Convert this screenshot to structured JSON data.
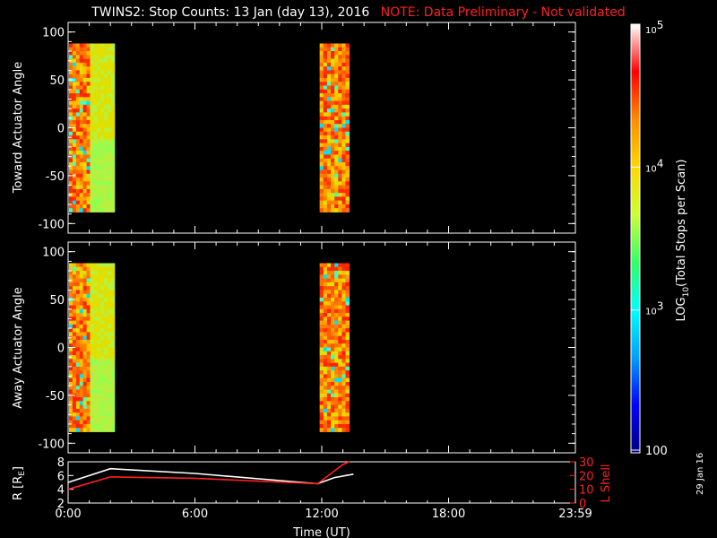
{
  "title": {
    "main": "TWINS2: Stop Counts: 13 Jan (day  13), 2016",
    "note": "NOTE: Data Preliminary - Not validated"
  },
  "side_date": "29 Jan 16",
  "colors": {
    "background": "#000000",
    "axes": "#ffffff",
    "note": "#ff2020",
    "lshell": "#ff2020"
  },
  "chart_data": [
    {
      "type": "heatmap",
      "panel": "toward",
      "ylabel": "Toward Actuator Angle",
      "ylim": [
        -110,
        110
      ],
      "yticks": [
        "100",
        "50",
        "0",
        "-50",
        "-100"
      ],
      "xlim_hours": [
        0,
        24
      ],
      "angle_range": [
        -88,
        88
      ],
      "blocks": [
        {
          "start_hour": -0.2,
          "end_hour": 2.2
        },
        {
          "start_hour": 11.9,
          "end_hour": 13.3
        }
      ]
    },
    {
      "type": "heatmap",
      "panel": "away",
      "ylabel": "Away Actuator Angle",
      "ylim": [
        -110,
        110
      ],
      "yticks": [
        "100",
        "50",
        "0",
        "-50",
        "-100"
      ],
      "xlim_hours": [
        0,
        24
      ],
      "angle_range": [
        -88,
        88
      ],
      "blocks": [
        {
          "start_hour": -0.2,
          "end_hour": 2.2
        },
        {
          "start_hour": 11.9,
          "end_hour": 13.3
        }
      ]
    },
    {
      "type": "line",
      "panel": "ephemeris",
      "ylabel": "R [R",
      "ylabel_sub": "E",
      "ylabel_end": "]",
      "ylim": [
        2,
        8
      ],
      "yticks": [
        "8",
        "6",
        "4",
        "2"
      ],
      "y2label": "L Shell",
      "y2lim": [
        0,
        30
      ],
      "y2ticks": [
        "30",
        "20",
        "10",
        "0"
      ],
      "xlabel": "Time (UT)",
      "xticks": [
        "0:00",
        "6:00",
        "12:00",
        "18:00",
        "23:59"
      ],
      "series": [
        {
          "axis": "left",
          "color": "#ffffff",
          "points": [
            [
              0,
              5.0
            ],
            [
              2.0,
              7.0
            ],
            [
              6,
              6.3
            ],
            [
              11.8,
              4.8
            ],
            [
              12.6,
              5.7
            ],
            [
              13.5,
              6.2
            ]
          ]
        },
        {
          "axis": "right",
          "color": "#ff2020",
          "points": [
            [
              0,
              10
            ],
            [
              2.0,
              19
            ],
            [
              6,
              18
            ],
            [
              11.8,
              14
            ],
            [
              13.0,
              28
            ],
            [
              13.3,
              30
            ]
          ]
        }
      ]
    }
  ],
  "colorbar": {
    "label": "LOG",
    "label_sub": "10",
    "label_end": "(Total Stops per Scan)",
    "tick_labels": [
      "10",
      "10",
      "10",
      "100"
    ],
    "tick_exps": [
      "5",
      "4",
      "3",
      ""
    ],
    "stops": [
      "#ffffff",
      "#ff0000",
      "#ff8c00",
      "#ffd700",
      "#ccff33",
      "#33ff66",
      "#00ffff",
      "#00a0ff",
      "#0000ff",
      "#000080"
    ]
  }
}
